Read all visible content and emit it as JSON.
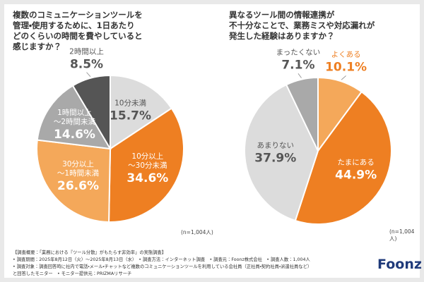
{
  "chart_data": [
    {
      "type": "pie",
      "title": [
        "複数のコミュニケーションツールを",
        "管理・使用するために、1日あたり",
        "どのくらいの時間を費やしていると",
        "感じますか？"
      ],
      "categories": [
        "10分未満",
        "10分以上\n〜30分未満",
        "30分以上\n〜1時間未満",
        "1時間以上\n〜2時間未満",
        "2時間以上"
      ],
      "values": [
        15.7,
        34.6,
        26.6,
        14.6,
        8.5
      ],
      "value_labels": [
        "15.7%",
        "34.6%",
        "26.6%",
        "14.6%",
        "8.5%"
      ],
      "colors": [
        "#dcdcdc",
        "#ee7f22",
        "#f4a85a",
        "#a9a9a9",
        "#555555"
      ],
      "note": "(n=1,004人)"
    },
    {
      "type": "pie",
      "title": [
        "異なるツール間の情報連携が",
        "不十分なことで、業務ミスや対応漏れが",
        "発生した経験はありますか？"
      ],
      "categories": [
        "よくある",
        "たまにある",
        "あまりない",
        "まったくない"
      ],
      "values": [
        10.1,
        44.9,
        37.9,
        7.1
      ],
      "value_labels": [
        "10.1%",
        "44.9%",
        "37.9%",
        "7.1%"
      ],
      "colors": [
        "#f4a85a",
        "#ee7f22",
        "#dcdcdc",
        "#a9a9a9"
      ],
      "note": "(n=1,004人)"
    }
  ],
  "footer": {
    "lines": [
      "【調査概要：「業務における『ツール分散』がもたらす非効率」の実態調査】",
      "• 調査期間：2025年8月12日（火）〜2025年8月13日（水）　• 調査方法：インターネット調査　• 調査元：Foonz株式会社　• 調査人数：1,004人",
      "• 調査対象：調査回答時に社内で電話・メール・チャットなど複数のコミュニケーションツールを利用している会社員（正社員・契約社員・派遣社員など）",
      "と回答したモニター　• モニター提供元：PRIZMAリサーチ"
    ],
    "logo": "Foonz"
  }
}
